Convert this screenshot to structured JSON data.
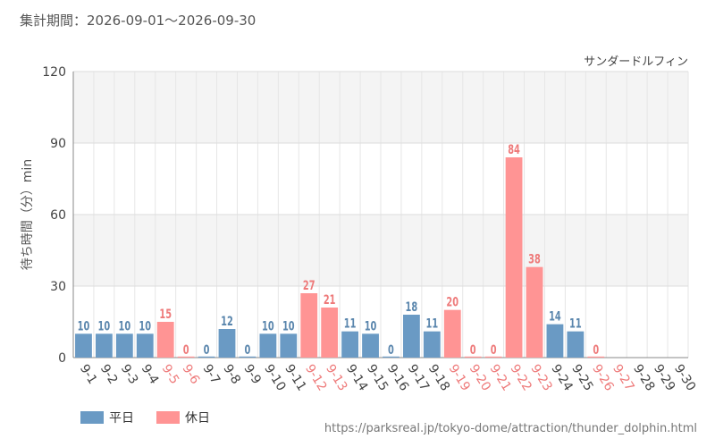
{
  "header": {
    "period_label": "集計期間：2026-09-01～2026-09-30"
  },
  "chart_data": {
    "type": "bar",
    "series_name": "サンダードルフィン",
    "ylabel": "待ち時間（分）min",
    "xlabel": "",
    "ylim": [
      0,
      120
    ],
    "yticks": [
      0,
      30,
      60,
      90,
      120
    ],
    "categories": [
      "9-1",
      "9-2",
      "9-3",
      "9-4",
      "9-5",
      "9-6",
      "9-7",
      "9-8",
      "9-9",
      "9-10",
      "9-11",
      "9-12",
      "9-13",
      "9-14",
      "9-15",
      "9-16",
      "9-17",
      "9-18",
      "9-19",
      "9-20",
      "9-21",
      "9-22",
      "9-23",
      "9-24",
      "9-25",
      "9-26",
      "9-27",
      "9-28",
      "9-29",
      "9-30"
    ],
    "values": [
      10,
      10,
      10,
      10,
      15,
      0,
      0,
      12,
      0,
      10,
      10,
      27,
      21,
      11,
      10,
      0,
      18,
      11,
      20,
      0,
      0,
      84,
      38,
      14,
      11,
      0,
      null,
      null,
      null,
      null
    ],
    "day_types": [
      "weekday",
      "weekday",
      "weekday",
      "weekday",
      "holiday",
      "holiday",
      "weekday",
      "weekday",
      "weekday",
      "weekday",
      "weekday",
      "holiday",
      "holiday",
      "weekday",
      "weekday",
      "weekday",
      "weekday",
      "weekday",
      "holiday",
      "holiday",
      "holiday",
      "holiday",
      "holiday",
      "weekday",
      "weekday",
      "holiday",
      "holiday",
      "weekday",
      "weekday",
      "weekday"
    ],
    "legend": [
      {
        "key": "weekday",
        "label": "平日",
        "color": "#6a9ac4"
      },
      {
        "key": "holiday",
        "label": "休日",
        "color": "#ff9494"
      }
    ],
    "label_colors": {
      "weekday": "#5a86ad",
      "holiday": "#ee7a7a"
    },
    "grid": true,
    "legend_position": "bottom-left"
  },
  "footer": {
    "source_url": "https://parksreal.jp/tokyo-dome/attraction/thunder_dolphin.html"
  }
}
